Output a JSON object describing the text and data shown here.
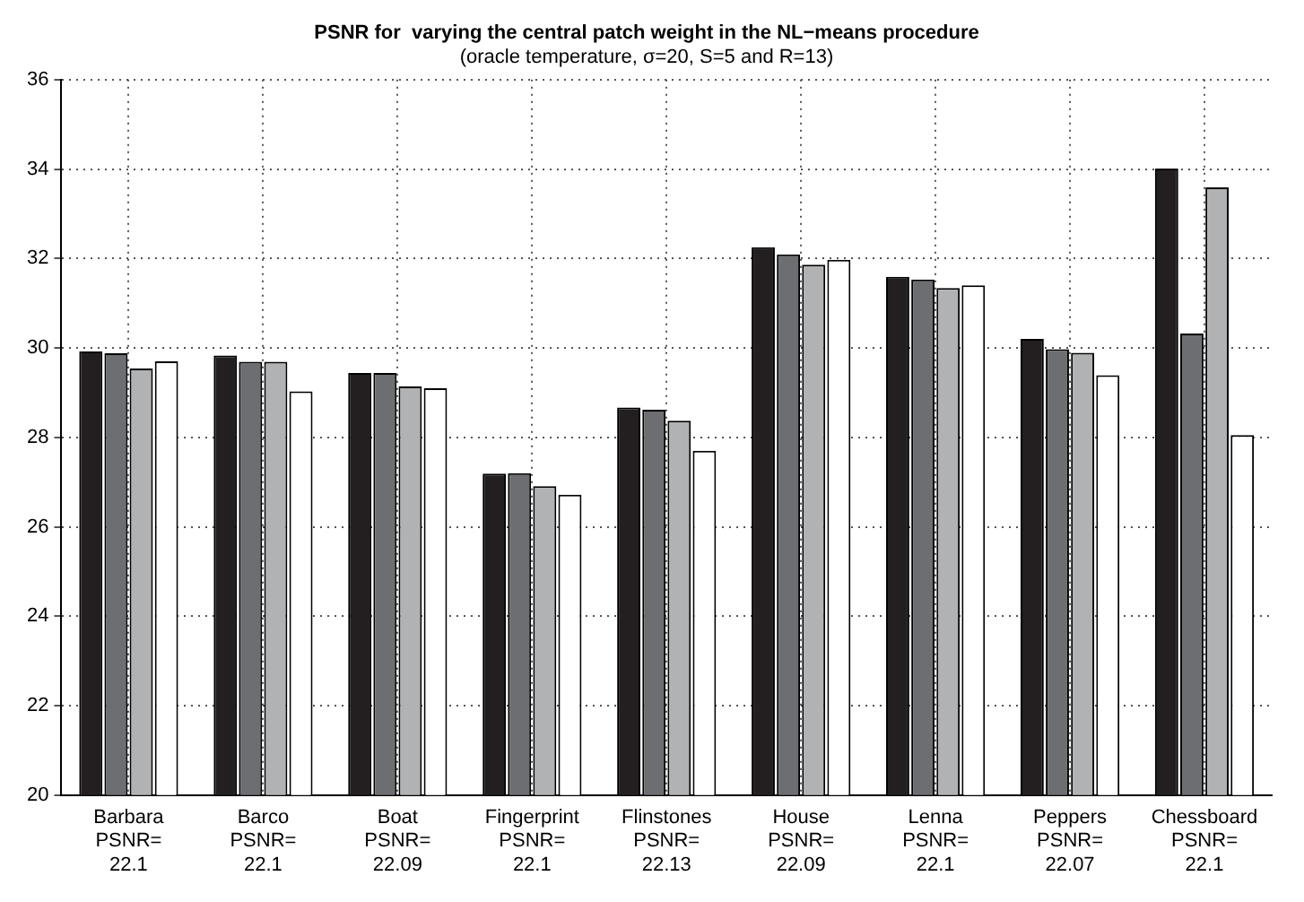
{
  "chart_data": {
    "type": "bar",
    "title": "PSNR for  varying the central patch weight in the NL−means procedure",
    "subtitle": "(oracle temperature, σ=20, S=5 and R=13)",
    "categories": [
      "Barbara\nPSNR=\n22.1",
      "Barco\nPSNR=\n22.1",
      "Boat\nPSNR=\n22.09",
      "Fingerprint\nPSNR=\n22.1",
      "Flinstones\nPSNR=\n22.13",
      "House\nPSNR=\n22.09",
      "Lenna\nPSNR=\n22.1",
      "Peppers\nPSNR=\n22.07",
      "Chessboard\nPSNR=\n22.1"
    ],
    "series": [
      {
        "color": "#231f20",
        "values": [
          29.92,
          29.83,
          29.44,
          27.19,
          28.67,
          32.25,
          31.59,
          30.2,
          34.01
        ]
      },
      {
        "color": "#6d6e71",
        "values": [
          29.88,
          29.69,
          29.44,
          27.2,
          28.62,
          32.09,
          31.53,
          29.97,
          30.32
        ]
      },
      {
        "color": "#b1b2b4",
        "values": [
          29.54,
          29.69,
          29.14,
          26.91,
          28.37,
          31.86,
          31.34,
          29.89,
          33.59
        ]
      },
      {
        "color": "#ffffff",
        "values": [
          29.7,
          29.03,
          29.1,
          26.72,
          27.7,
          31.97,
          31.4,
          29.39,
          28.05
        ]
      }
    ],
    "ylim": [
      20,
      36
    ],
    "yticks": [
      20,
      22,
      24,
      26,
      28,
      30,
      32,
      34,
      36
    ],
    "grid": true,
    "legend": false
  }
}
